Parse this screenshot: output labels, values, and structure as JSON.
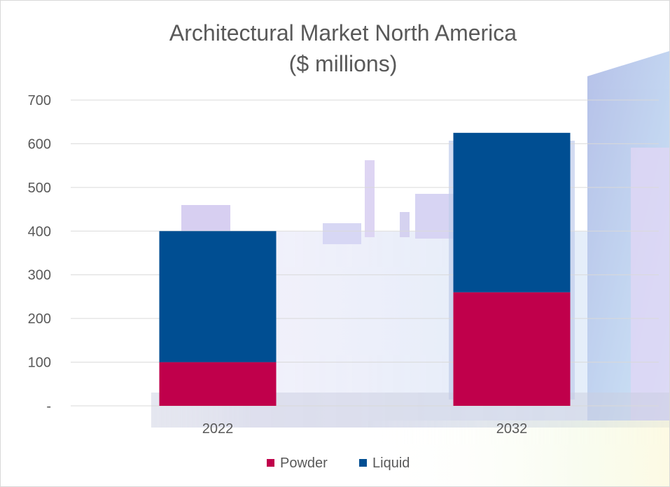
{
  "chart_data": {
    "type": "bar",
    "stacked": true,
    "title_line1": "Architectural Market North America",
    "title_line2": "($ millions)",
    "xlabel": "",
    "ylabel": "",
    "categories": [
      "2022",
      "2032"
    ],
    "series": [
      {
        "name": "Powder",
        "color": "#c0004b",
        "values": [
          100,
          260
        ]
      },
      {
        "name": "Liquid",
        "color": "#004e92",
        "values": [
          300,
          365
        ]
      }
    ],
    "ylim": [
      0,
      700
    ],
    "yticks": [
      0,
      100,
      200,
      300,
      400,
      500,
      600,
      700
    ],
    "ytick_labels": [
      "-",
      "100",
      "200",
      "300",
      "400",
      "500",
      "600",
      "700"
    ],
    "grid": true,
    "legend_position": "bottom"
  }
}
